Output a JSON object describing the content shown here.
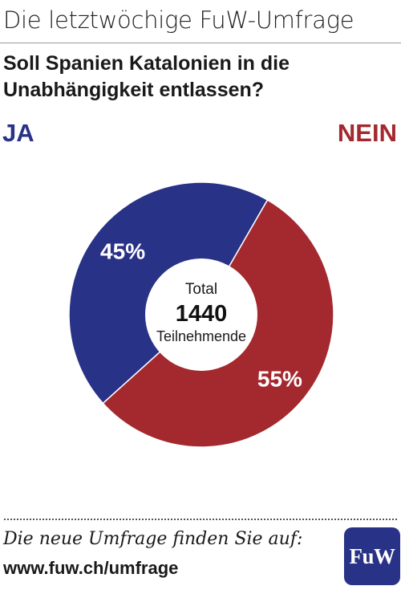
{
  "header": {
    "title": "Die letztwöchige FuW-Umfrage"
  },
  "question": {
    "line1": "Soll Spanien Katalonien in die",
    "line2": "Unabhängigkeit entlassen?"
  },
  "chart_data": {
    "type": "pie",
    "categories": [
      "JA",
      "NEIN"
    ],
    "values": [
      45,
      55
    ],
    "value_labels": [
      "45%",
      "55%"
    ],
    "colors": [
      "#283286",
      "#a3292f"
    ],
    "center": {
      "line1": "Total",
      "line2": "1440",
      "line3": "Teilnehmende"
    }
  },
  "footer": {
    "text": "Die neue Umfrage finden Sie auf:",
    "url": "www.fuw.ch/umfrage",
    "logo": "FuW"
  }
}
